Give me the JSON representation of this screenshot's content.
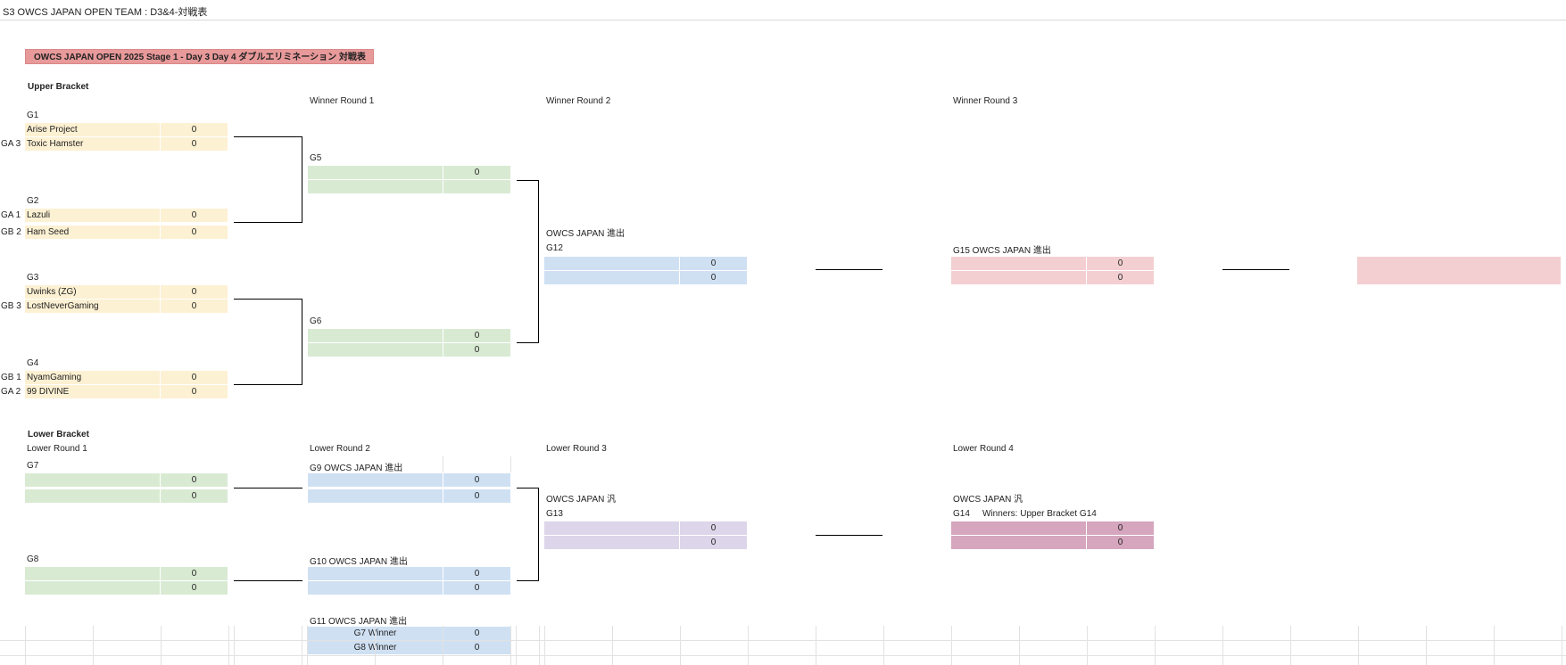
{
  "sheet_title": "S3 OWCS JAPAN OPEN TEAM : D3&4-対戦表",
  "banner": "OWCS JAPAN OPEN 2025 Stage 1 - Day 3 Day 4 ダブルエリミネーション 対戦表",
  "upper": {
    "heading": "Upper Bracket",
    "round_labels": {
      "r1": "Winner Round 1",
      "r2": "Winner Round 2",
      "r3": "Winner Round 3"
    },
    "g1": {
      "label": "G1",
      "team1": "Arise Project",
      "score1": "0",
      "seed2": "GA 3",
      "team2": "Toxic Hamster",
      "score2": "0"
    },
    "g2": {
      "label": "G2",
      "seed1": "GA 1",
      "team1": "Lazuli",
      "score1": "0",
      "seed2": "GB 2",
      "team2": "Ham Seed",
      "score2": "0"
    },
    "g3": {
      "label": "G3",
      "team1": "Uwinks (ZG)",
      "score1": "0",
      "seed2": "GB 3",
      "team2": "LostNeverGaming",
      "score2": "0"
    },
    "g4": {
      "label": "G4",
      "seed1": "GB 1",
      "team1": "NyamGaming",
      "score1": "0",
      "seed2": "GA 2",
      "team2": "99 DIVINE",
      "score2": "0"
    },
    "g5": {
      "label": "G5",
      "score1": "0",
      "score2": ""
    },
    "g6": {
      "label": "G6",
      "score1": "0",
      "score2": "0"
    },
    "g12": {
      "note": "OWCS JAPAN 進出",
      "label": "G12",
      "score1": "0",
      "score2": "0"
    },
    "g15": {
      "label": "G15 OWCS JAPAN 進出",
      "score1": "0",
      "score2": "0"
    }
  },
  "lower": {
    "heading": "Lower Bracket",
    "round_labels": {
      "r1": "Lower Round 1",
      "r2": "Lower Round 2",
      "r3": "Lower Round 3",
      "r4": "Lower Round 4"
    },
    "g7": {
      "label": "G7",
      "score1": "0",
      "score2": "0"
    },
    "g8": {
      "label": "G8",
      "score1": "0",
      "score2": "0"
    },
    "g9": {
      "label": "G9 OWCS JAPAN 進出",
      "score1": "0",
      "score2": "0"
    },
    "g10": {
      "label": "G10 OWCS JAPAN 進出",
      "score1": "0",
      "score2": "0"
    },
    "g11": {
      "label": "G11 OWCS JAPAN 進出",
      "team1": "G7 Winner",
      "score1": "0",
      "team2": "G8 Winner",
      "score2": "0"
    },
    "g13": {
      "note": "OWCS JAPAN 汎",
      "label": "G13",
      "score1": "0",
      "score2": "0"
    },
    "g14": {
      "note": "OWCS JAPAN 汎",
      "label": "G14",
      "winners_note": "Winners: Upper Bracket G14",
      "score1": "0",
      "score2": "0"
    }
  },
  "colors": {
    "upper_r1": "#fdf1d3",
    "green": "#d9ead3",
    "blue": "#cfe0f3",
    "pink": "#f3cfd1",
    "purple": "#ddd5e9",
    "mauve": "#d5a6bd",
    "banner": "#e8999a"
  }
}
